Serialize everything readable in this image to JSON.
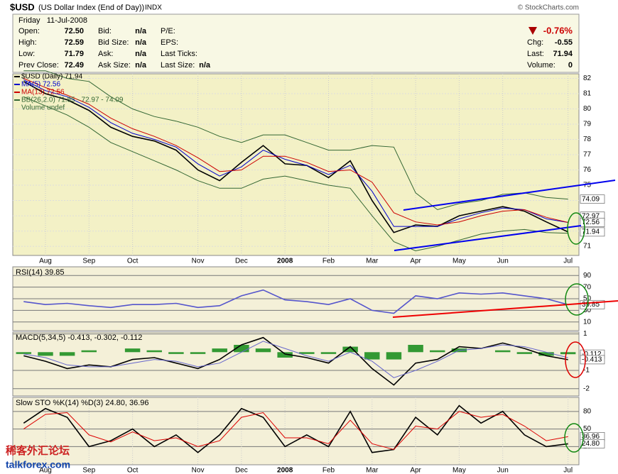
{
  "header": {
    "symbol": "$USD",
    "name": "(US Dollar Index (End of Day))",
    "exchange": "INDX",
    "credit": "© StockCharts.com",
    "date": "Friday   11-Jul-2008",
    "quote_left": [
      {
        "label": "Open:",
        "value": "72.50"
      },
      {
        "label": "High:",
        "value": "72.59"
      },
      {
        "label": "Low:",
        "value": "71.79"
      },
      {
        "label": "Prev Close:",
        "value": "72.49"
      }
    ],
    "quote_mid": [
      {
        "label": "Bid:",
        "value": "n/a"
      },
      {
        "label": "Bid Size:",
        "value": "n/a"
      },
      {
        "label": "Ask:",
        "value": "n/a"
      },
      {
        "label": "Ask Size:",
        "value": "n/a"
      }
    ],
    "quote_right": [
      {
        "label": "P/E:"
      },
      {
        "label": "EPS:"
      },
      {
        "label": "Last Ticks:"
      },
      {
        "label": "Last Size:",
        "value": "n/a"
      }
    ],
    "change_pct": "-0.76%",
    "summary": [
      {
        "label": "Chg:",
        "value": "-0.55"
      },
      {
        "label": "Last:",
        "value": "71.94"
      },
      {
        "label": "Volume:",
        "value": "0"
      }
    ]
  },
  "watermark": [
    "稀客外汇论坛",
    "talkforex.com"
  ],
  "chart_data": [
    {
      "type": "line",
      "categories": [
        null,
        "Aug",
        null,
        "Sep",
        null,
        "Oct",
        null,
        null,
        "Nov",
        null,
        "Dec",
        null,
        "2008",
        null,
        "Feb",
        null,
        "Mar",
        null,
        "Apr",
        null,
        "May",
        null,
        "Jun",
        null,
        null,
        "Jul"
      ],
      "series": [
        {
          "name": "$USD (Daily) 71.94",
          "color": "#000000",
          "values": [
            81.8,
            81.0,
            80.6,
            79.9,
            78.8,
            78.2,
            77.9,
            77.3,
            76.0,
            75.3,
            76.5,
            77.6,
            76.4,
            76.3,
            75.5,
            76.6,
            74.0,
            71.9,
            72.4,
            72.3,
            73.0,
            73.3,
            73.6,
            73.3,
            72.6,
            71.94
          ]
        },
        {
          "name": "MA(5) 72.56",
          "color": "#0000cc",
          "values": [
            81.9,
            81.2,
            80.8,
            80.1,
            79.1,
            78.4,
            78.0,
            77.5,
            76.4,
            75.6,
            76.2,
            77.3,
            76.7,
            76.3,
            75.7,
            76.3,
            74.6,
            72.3,
            72.3,
            72.3,
            72.8,
            73.2,
            73.5,
            73.4,
            72.8,
            72.56
          ]
        },
        {
          "name": "MA(13) 72.56",
          "color": "#cc0000",
          "values": [
            82.0,
            81.4,
            80.9,
            80.3,
            79.4,
            78.7,
            78.2,
            77.6,
            76.8,
            75.9,
            76.0,
            76.9,
            76.9,
            76.5,
            75.9,
            76.0,
            75.2,
            73.2,
            72.6,
            72.4,
            72.6,
            73.0,
            73.3,
            73.4,
            72.9,
            72.56
          ]
        }
      ],
      "band": {
        "name": "BB(26,2.0) 71.85 - 72.97 - 74.09",
        "color": "#336633",
        "upper": [
          82.5,
          82.5,
          82.0,
          81.8,
          80.8,
          80.0,
          79.5,
          79.2,
          78.8,
          78.2,
          77.8,
          78.3,
          78.3,
          77.8,
          77.3,
          77.3,
          77.6,
          77.5,
          74.5,
          73.4,
          73.8,
          74.0,
          74.4,
          74.5,
          74.2,
          74.09
        ],
        "lower": [
          80.8,
          80.2,
          79.6,
          78.8,
          77.8,
          77.2,
          76.6,
          76.0,
          75.3,
          74.8,
          74.8,
          75.4,
          75.6,
          75.3,
          75.0,
          74.8,
          73.0,
          71.3,
          70.7,
          71.0,
          71.4,
          71.8,
          72.0,
          72.1,
          71.9,
          71.85
        ]
      },
      "volume_label": "Volume undef",
      "ylim": [
        70.4,
        82.3
      ],
      "yticks": [
        71,
        72,
        73,
        74,
        75,
        76,
        77,
        78,
        79,
        80,
        81,
        82
      ],
      "end_labels": [
        74.09,
        72.97,
        72.56,
        71.94
      ]
    },
    {
      "type": "line",
      "title": "RSI(14) 39.85",
      "series": [
        {
          "name": "RSI(14)",
          "color": "#5555cc",
          "values": [
            45,
            40,
            42,
            38,
            35,
            40,
            40,
            42,
            35,
            38,
            55,
            65,
            48,
            45,
            40,
            50,
            30,
            25,
            55,
            50,
            60,
            58,
            60,
            55,
            50,
            39.85
          ]
        }
      ],
      "ylim": [
        -5,
        105
      ],
      "yticks": [
        90,
        70,
        50,
        30,
        10
      ],
      "end_labels": [
        39.85
      ]
    },
    {
      "type": "line",
      "title": "MACD(5,34,5) -0.413, -0.302, -0.112",
      "series": [
        {
          "name": "MACD",
          "color": "#000000",
          "values": [
            -0.2,
            -0.5,
            -0.9,
            -0.7,
            -0.8,
            -0.4,
            -0.3,
            -0.6,
            -0.9,
            -0.4,
            0.4,
            0.8,
            -0.1,
            -0.3,
            -0.6,
            0.3,
            -0.9,
            -1.8,
            -0.6,
            -0.4,
            0.3,
            0.2,
            0.5,
            0.2,
            -0.2,
            -0.413
          ]
        },
        {
          "name": "Signal",
          "color": "#6666cc",
          "values": [
            -0.1,
            -0.3,
            -0.7,
            -0.8,
            -0.8,
            -0.6,
            -0.4,
            -0.5,
            -0.8,
            -0.6,
            0.0,
            0.6,
            0.2,
            -0.2,
            -0.5,
            0.0,
            -0.5,
            -1.4,
            -1.0,
            -0.5,
            0.1,
            0.2,
            0.4,
            0.3,
            0.0,
            -0.302
          ]
        },
        {
          "name": "Histogram",
          "type": "bar",
          "color": "#339933",
          "values": [
            -0.1,
            -0.2,
            -0.2,
            0.1,
            0,
            0.2,
            0.1,
            -0.1,
            -0.1,
            0.2,
            0.4,
            0.2,
            -0.3,
            -0.1,
            -0.1,
            0.3,
            -0.4,
            -0.4,
            0.4,
            0.1,
            0.2,
            0,
            0.1,
            -0.1,
            -0.2,
            -0.112
          ]
        }
      ],
      "ylim": [
        -2.4,
        1.1
      ],
      "yticks": [
        1,
        -1,
        -2
      ],
      "end_labels": [
        -0.112,
        -0.413
      ]
    },
    {
      "type": "line",
      "title": "Slow STO %K(14) %D(3) 24.80, 36.96",
      "categories": [
        null,
        "Aug",
        null,
        "Sep",
        null,
        "Oct",
        null,
        null,
        "Nov",
        null,
        "Dec",
        null,
        "2008",
        null,
        "Feb",
        null,
        "Mar",
        null,
        "Apr",
        null,
        "May",
        null,
        "Jun",
        null,
        null,
        "Jul"
      ],
      "series": [
        {
          "name": "%K",
          "color": "#000000",
          "values": [
            60,
            85,
            70,
            20,
            30,
            50,
            20,
            40,
            10,
            40,
            85,
            70,
            20,
            40,
            20,
            80,
            10,
            15,
            70,
            40,
            90,
            60,
            80,
            40,
            20,
            24.8
          ]
        },
        {
          "name": "%D",
          "color": "#dd0000",
          "values": [
            50,
            75,
            78,
            40,
            28,
            45,
            30,
            35,
            20,
            30,
            70,
            78,
            35,
            35,
            25,
            65,
            25,
            15,
            55,
            50,
            80,
            70,
            75,
            55,
            30,
            36.96
          ]
        }
      ],
      "ylim": [
        -11,
        104
      ],
      "yticks": [
        80,
        50,
        20
      ],
      "end_labels": [
        36.96,
        {
          "value": 24.8,
          "label": "24.80"
        }
      ]
    }
  ]
}
